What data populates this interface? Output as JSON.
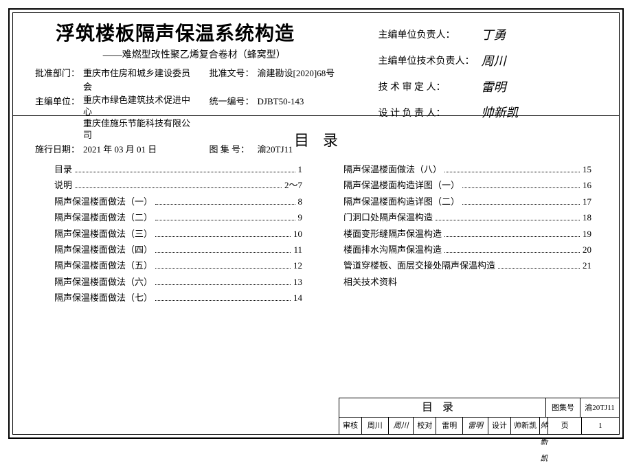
{
  "header": {
    "main_title": "浮筑楼板隔声保温系统构造",
    "sub_title": "难燃型改性聚乙烯复合卷材（蜂窝型）",
    "approve_dept_label": "批准部门：",
    "approve_dept": "重庆市住房和城乡建设委员会",
    "approve_doc_label": "批准文号：",
    "approve_doc": "渝建勘设[2020]68号",
    "editor_unit_label": "主编单位：",
    "editor_unit_1": "重庆市绿色建筑技术促进中心",
    "editor_unit_2": "重庆佳施乐节能科技有限公司",
    "unified_no_label": "统一编号：",
    "unified_no": "DJBT50-143",
    "exec_date_label": "施行日期：",
    "exec_date": "2021 年 03 月 01 日",
    "atlas_no_label": "图 集 号：",
    "atlas_no": "渝20TJ11"
  },
  "responsibles": {
    "r1_label": "主编单位负责人：",
    "r1_sig": "丁勇",
    "r2_label": "主编单位技术负责人：",
    "r2_sig": "周川",
    "r3_label": "技 术 审 定 人：",
    "r3_sig": "雷明",
    "r4_label": "设 计 负 责 人：",
    "r4_sig": "帅新凯"
  },
  "toc": {
    "title": "目录",
    "left": [
      {
        "label": "目录",
        "page": "1"
      },
      {
        "label": "说明",
        "page": "2～7"
      },
      {
        "label": "隔声保温楼面做法（一）",
        "page": "8"
      },
      {
        "label": "隔声保温楼面做法（二）",
        "page": "9"
      },
      {
        "label": "隔声保温楼面做法（三）",
        "page": "10"
      },
      {
        "label": "隔声保温楼面做法（四）",
        "page": "11"
      },
      {
        "label": "隔声保温楼面做法（五）",
        "page": "12"
      },
      {
        "label": "隔声保温楼面做法（六）",
        "page": "13"
      },
      {
        "label": "隔声保温楼面做法（七）",
        "page": "14"
      }
    ],
    "right": [
      {
        "label": "隔声保温楼面做法（八）",
        "page": "15"
      },
      {
        "label": "隔声保温楼面构造详图（一）",
        "page": "16"
      },
      {
        "label": "隔声保温楼面构造详图（二）",
        "page": "17"
      },
      {
        "label": "门洞口处隔声保温构造",
        "page": "18"
      },
      {
        "label": "楼面变形缝隔声保温构造",
        "page": "19"
      },
      {
        "label": "楼面排水沟隔声保温构造",
        "page": "20"
      },
      {
        "label": "管道穿楼板、面层交接处隔声保温构造",
        "page": "21"
      },
      {
        "label": "相关技术资料",
        "page": ""
      }
    ]
  },
  "footer": {
    "block_title": "目录",
    "atlas_label": "图集号",
    "atlas_no": "渝20TJ11",
    "review_label": "审核",
    "review_name": "周川",
    "review_sig": "周川",
    "proof_label": "校对",
    "proof_name": "雷明",
    "proof_sig": "雷明",
    "design_label": "设计",
    "design_name": "帅新凯",
    "design_sig": "帅新凯",
    "page_label": "页",
    "page_no": "1"
  }
}
